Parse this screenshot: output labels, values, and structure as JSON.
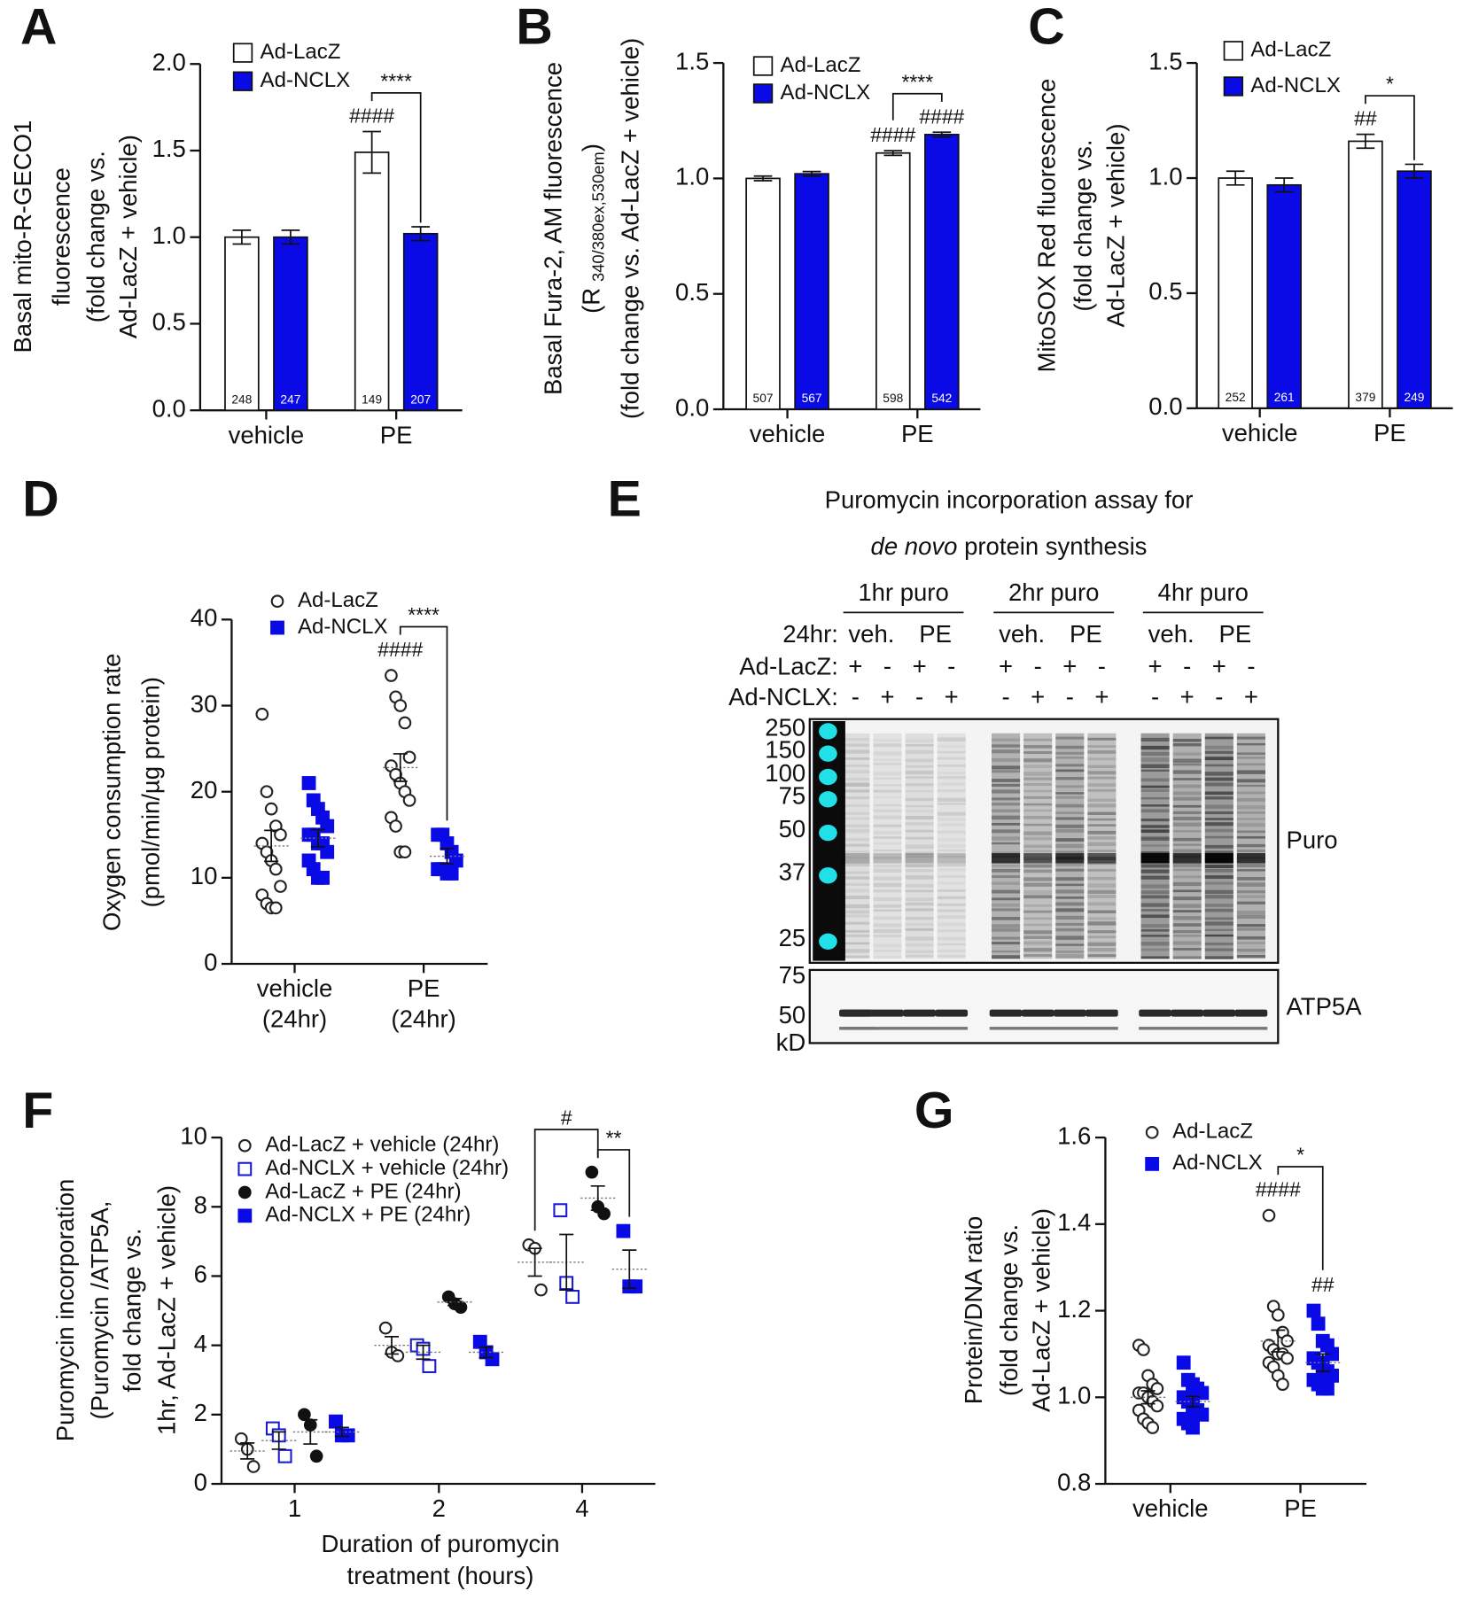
{
  "chart_data": [
    {
      "panel": "A",
      "type": "bar",
      "ylabel": [
        "Basal mito-R-GECO1",
        "fluorescence",
        "(fold change vs.",
        "Ad-LacZ + vehicle)"
      ],
      "categories": [
        "vehicle",
        "PE"
      ],
      "series": [
        {
          "name": "Ad-LacZ",
          "color": "#ffffff",
          "values": [
            1.0,
            1.49
          ],
          "errors": [
            0.04,
            0.12
          ],
          "n": [
            248,
            149
          ],
          "sig": [
            null,
            "####"
          ]
        },
        {
          "name": "Ad-NCLX",
          "color": "#0a0ae6",
          "values": [
            1.0,
            1.02
          ],
          "errors": [
            0.04,
            0.04
          ],
          "n": [
            247,
            207
          ]
        }
      ],
      "brackets": [
        "****"
      ],
      "ylim": [
        0,
        2
      ],
      "yticks": [
        {
          "value": 0,
          "label": "0.0"
        },
        0.5,
        {
          "value": 1,
          "label": "1.0"
        },
        1.5,
        {
          "value": 2,
          "label": "2.0"
        }
      ]
    },
    {
      "panel": "B",
      "type": "bar",
      "ylabel": [
        "Basal Fura-2, AM fluorescence",
        "(fold change vs. Ad-LacZ + vehicle)"
      ],
      "ylabel_ratio": [
        "(R",
        "340/380ex,530em",
        ")"
      ],
      "categories": [
        "vehicle",
        "PE"
      ],
      "series": [
        {
          "name": "Ad-LacZ",
          "color": "#ffffff",
          "values": [
            1.0,
            1.11
          ],
          "errors": [
            0.01,
            0.01
          ],
          "n": [
            507,
            598
          ],
          "sig": [
            null,
            "####"
          ]
        },
        {
          "name": "Ad-NCLX",
          "color": "#0a0ae6",
          "values": [
            1.02,
            1.19
          ],
          "errors": [
            0.01,
            0.01
          ],
          "n": [
            567,
            542
          ],
          "sig": [
            null,
            "####"
          ]
        }
      ],
      "brackets": [
        "****"
      ],
      "ylim": [
        0,
        1.5
      ],
      "yticks": [
        {
          "value": 0,
          "label": "0.0"
        },
        0.5,
        {
          "value": 1,
          "label": "1.0"
        },
        1.5
      ]
    },
    {
      "panel": "C",
      "type": "bar",
      "ylabel": [
        "MitoSOX Red fluorescence",
        "(fold change vs.",
        "Ad-LacZ + vehicle)"
      ],
      "categories": [
        "vehicle",
        "PE"
      ],
      "series": [
        {
          "name": "Ad-LacZ",
          "color": "#ffffff",
          "values": [
            1.0,
            1.16
          ],
          "errors": [
            0.03,
            0.03
          ],
          "n": [
            252,
            379
          ],
          "sig": [
            null,
            "##"
          ]
        },
        {
          "name": "Ad-NCLX",
          "color": "#0a0ae6",
          "values": [
            0.97,
            1.03
          ],
          "errors": [
            0.03,
            0.03
          ],
          "n": [
            261,
            249
          ]
        }
      ],
      "brackets": [
        "*"
      ],
      "ylim": [
        0,
        1.5
      ],
      "yticks": [
        {
          "value": 0,
          "label": "0.0"
        },
        0.5,
        {
          "value": 1,
          "label": "1.0"
        },
        1.5
      ]
    },
    {
      "panel": "D",
      "type": "dot",
      "ylabel": [
        "Oxygen consumption rate",
        "(pmol/min/µg protein)"
      ],
      "categories": [
        "vehicle",
        "PE"
      ],
      "category_sublabels": [
        "(24hr)",
        "(24hr)"
      ],
      "series": [
        {
          "name": "Ad-LacZ",
          "color": "#222222",
          "marker": "circle-open",
          "values": [
            [
              29,
              20,
              18,
              16,
              15,
              14,
              13,
              12,
              11,
              9,
              8,
              7,
              6.5,
              6.5
            ],
            [
              33.5,
              31,
              30,
              28,
              24,
              23,
              22,
              21,
              20,
              19,
              17,
              16,
              13,
              13
            ]
          ],
          "means": [
            13.7,
            22.8
          ],
          "errors": [
            1.8,
            1.6
          ],
          "sig": [
            null,
            "####"
          ]
        },
        {
          "name": "Ad-NCLX",
          "color": "#0a0ae6",
          "marker": "square-filled",
          "values": [
            [
              21,
              19,
              18,
              17,
              16,
              15,
              15,
              14,
              14,
              13,
              12,
              11,
              10,
              10
            ],
            [
              15,
              15,
              14,
              13,
              12,
              11,
              11,
              10.5,
              10.5
            ]
          ],
          "means": [
            14.6,
            12.5
          ],
          "errors": [
            1.0,
            0.9
          ]
        }
      ],
      "brackets": [
        "****"
      ],
      "ylim": [
        0,
        40
      ],
      "yticks": [
        0,
        10,
        20,
        30,
        40
      ]
    },
    {
      "panel": "F",
      "type": "dot",
      "ylabel": [
        "Puromycin incorporation",
        "(Puromycin /ATP5A,",
        "fold change vs.",
        "1hr, Ad-LacZ + vehicle)"
      ],
      "xlabel": [
        "Duration of puromycin",
        "treatment (hours)"
      ],
      "categories": [
        "1",
        "2",
        "4"
      ],
      "series": [
        {
          "name": "Ad-LacZ + vehicle (24hr)",
          "color": "#222222",
          "marker": "circle-open",
          "values": [
            [
              1.3,
              1.0,
              0.5
            ],
            [
              4.5,
              3.8,
              3.7
            ],
            [
              6.9,
              6.8,
              5.6
            ]
          ],
          "means": [
            0.95,
            4.0,
            6.4
          ],
          "errors": [
            0.23,
            0.25,
            0.4
          ]
        },
        {
          "name": "Ad-NCLX + vehicle (24hr)",
          "color": "#1a1ad0",
          "marker": "square-open",
          "values": [
            [
              1.6,
              1.4,
              0.8
            ],
            [
              4.0,
              3.9,
              3.4
            ],
            [
              7.9,
              5.8,
              5.4
            ]
          ],
          "means": [
            1.25,
            3.8,
            6.4
          ],
          "errors": [
            0.25,
            0.2,
            0.8
          ]
        },
        {
          "name": "Ad-LacZ + PE (24hr)",
          "color": "#111111",
          "marker": "circle-filled",
          "values": [
            [
              2.0,
              1.7,
              0.8
            ],
            [
              5.4,
              5.2,
              5.1
            ],
            [
              9.0,
              8.0,
              7.8
            ]
          ],
          "means": [
            1.5,
            5.25,
            8.25
          ],
          "errors": [
            0.35,
            0.1,
            0.35
          ]
        },
        {
          "name": "Ad-NCLX + PE (24hr)",
          "color": "#0a0ae6",
          "marker": "square-filled",
          "values": [
            [
              1.8,
              1.4,
              1.4
            ],
            [
              4.1,
              3.8,
              3.6
            ],
            [
              7.3,
              5.7,
              5.7
            ]
          ],
          "means": [
            1.5,
            3.8,
            6.2
          ],
          "errors": [
            0.13,
            0.15,
            0.55
          ]
        }
      ],
      "brackets": [
        "#",
        "**"
      ],
      "ylim": [
        0,
        10
      ],
      "yticks": [
        0,
        2,
        4,
        6,
        8,
        10
      ]
    },
    {
      "panel": "G",
      "type": "dot",
      "ylabel": [
        "Protein/DNA ratio",
        "(fold change vs.",
        "Ad-LacZ + vehicle)"
      ],
      "categories": [
        "vehicle",
        "PE"
      ],
      "series": [
        {
          "name": "Ad-LacZ",
          "color": "#222222",
          "marker": "circle-open",
          "values": [
            [
              1.12,
              1.11,
              1.05,
              1.03,
              1.02,
              1.01,
              1.01,
              1.0,
              0.99,
              0.98,
              0.97,
              0.95,
              0.94,
              0.93
            ],
            [
              1.42,
              1.21,
              1.19,
              1.15,
              1.13,
              1.12,
              1.11,
              1.1,
              1.1,
              1.09,
              1.08,
              1.07,
              1.05,
              1.03
            ]
          ],
          "means": [
            1.0,
            1.13
          ],
          "errors": [
            0.015,
            0.025
          ],
          "sig": [
            null,
            "####"
          ]
        },
        {
          "name": "Ad-NCLX",
          "color": "#0a0ae6",
          "marker": "square-filled",
          "values": [
            [
              1.08,
              1.04,
              1.03,
              1.02,
              1.01,
              1.0,
              0.99,
              0.98,
              0.97,
              0.96,
              0.95,
              0.94,
              0.93
            ],
            [
              1.2,
              1.17,
              1.13,
              1.12,
              1.1,
              1.09,
              1.08,
              1.07,
              1.06,
              1.05,
              1.04,
              1.03,
              1.02,
              1.02
            ]
          ],
          "means": [
            0.99,
            1.08
          ],
          "errors": [
            0.012,
            0.02
          ],
          "sig": [
            null,
            "##"
          ]
        }
      ],
      "brackets": [
        "*"
      ],
      "ylim": [
        0.8,
        1.6
      ],
      "yticks": [
        0.8,
        {
          "value": 1,
          "label": "1.0"
        },
        1.2,
        1.4,
        1.6
      ]
    }
  ],
  "blot": {
    "panel": "E",
    "title": "Puromycin incorporation assay for",
    "title_italic": "de novo",
    "title_rest": " protein synthesis",
    "groups": [
      "1hr puro",
      "2hr puro",
      "4hr puro"
    ],
    "treatment_label": "24hr:",
    "treatments": [
      "veh.",
      "PE"
    ],
    "rows": [
      {
        "label": "Ad-LacZ:",
        "signs": [
          "+",
          "-",
          "+",
          "-"
        ]
      },
      {
        "label": "Ad-NCLX:",
        "signs": [
          "-",
          "+",
          "-",
          "+"
        ]
      }
    ],
    "markers": [
      "250",
      "150",
      "100",
      "75",
      "50",
      "37",
      "25"
    ],
    "loading_markers": [
      "75",
      "50"
    ],
    "unit": "kD",
    "band_labels": [
      "Puro",
      "ATP5A"
    ]
  }
}
